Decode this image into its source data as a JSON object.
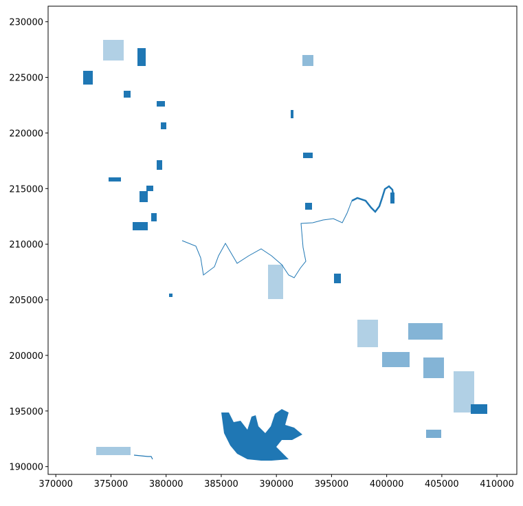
{
  "chart_data": {
    "type": "map",
    "xlim": [
      369300,
      411800
    ],
    "ylim": [
      189300,
      231400
    ],
    "xticks": [
      370000,
      375000,
      380000,
      385000,
      390000,
      395000,
      400000,
      405000,
      410000
    ],
    "yticks": [
      190000,
      195000,
      200000,
      205000,
      210000,
      215000,
      220000,
      225000,
      230000
    ]
  }
}
